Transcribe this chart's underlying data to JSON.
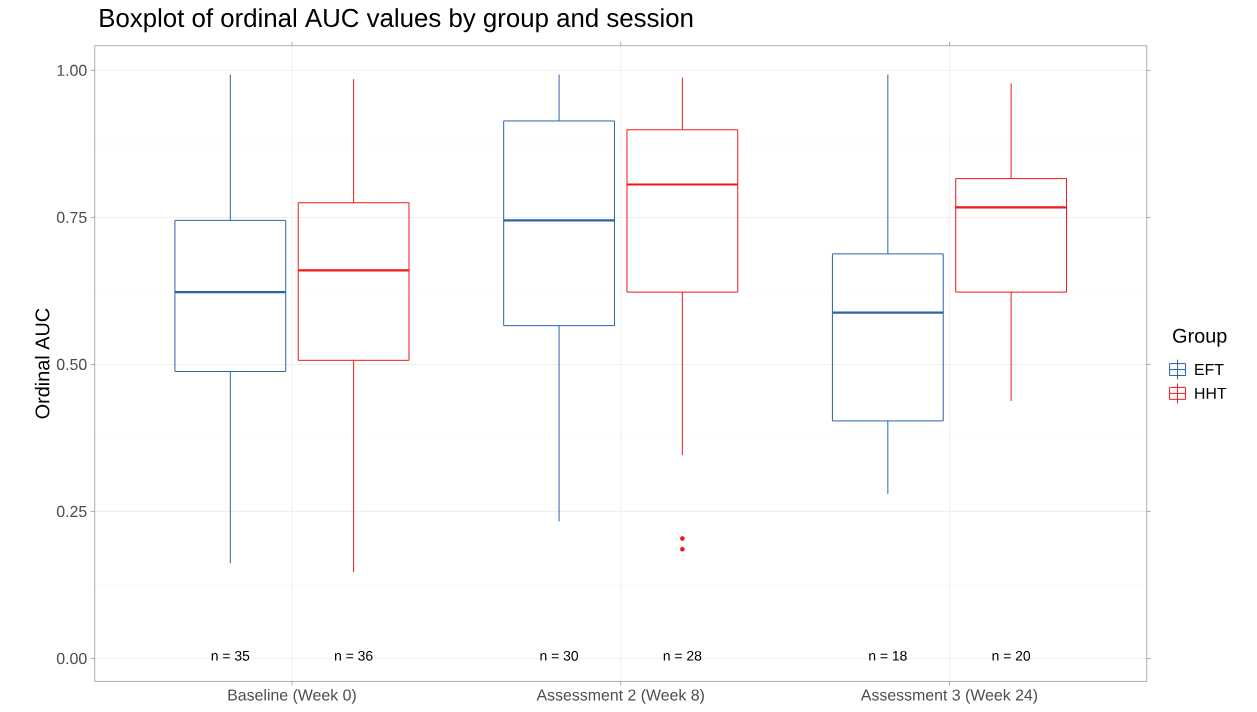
{
  "chart_data": {
    "type": "box",
    "title": "Boxplot of ordinal AUC values by group and session",
    "ylabel": "Ordinal AUC",
    "legend_title": "Group",
    "legend": "right",
    "grid": true,
    "categories": [
      "Baseline (Week 0)",
      "Assessment 2 (Week 8)",
      "Assessment 3 (Week 24)"
    ],
    "ylim": [
      -0.039,
      1.042
    ],
    "yticks": [
      {
        "value": 0,
        "label": "0.00"
      },
      {
        "value": 0.25,
        "label": "0.25"
      },
      {
        "value": 0.5,
        "label": "0.50"
      },
      {
        "value": 0.75,
        "label": "0.75"
      },
      {
        "value": 1,
        "label": "1.00"
      }
    ],
    "series": [
      {
        "name": "EFT",
        "color": "#2b64a5",
        "boxes": [
          {
            "low": 0.162,
            "q1": 0.488,
            "median": 0.623,
            "q3": 0.745,
            "high": 0.993
          },
          {
            "low": 0.233,
            "q1": 0.566,
            "median": 0.745,
            "q3": 0.914,
            "high": 0.993
          },
          {
            "low": 0.28,
            "q1": 0.404,
            "median": 0.588,
            "q3": 0.688,
            "high": 0.993
          }
        ]
      },
      {
        "name": "HHT",
        "color": "#f01818",
        "boxes": [
          {
            "low": 0.147,
            "q1": 0.507,
            "median": 0.66,
            "q3": 0.775,
            "high": 0.985
          },
          {
            "low": 0.346,
            "q1": 0.623,
            "median": 0.806,
            "q3": 0.899,
            "high": 0.988,
            "outliers": [
              0.204,
              0.186
            ]
          },
          {
            "low": 0.438,
            "q1": 0.623,
            "median": 0.767,
            "q3": 0.816,
            "high": 0.978
          }
        ]
      }
    ],
    "annotations": [
      "n = 35",
      "n = 36",
      "n = 30",
      "n = 28",
      "n = 18",
      "n = 20"
    ]
  }
}
